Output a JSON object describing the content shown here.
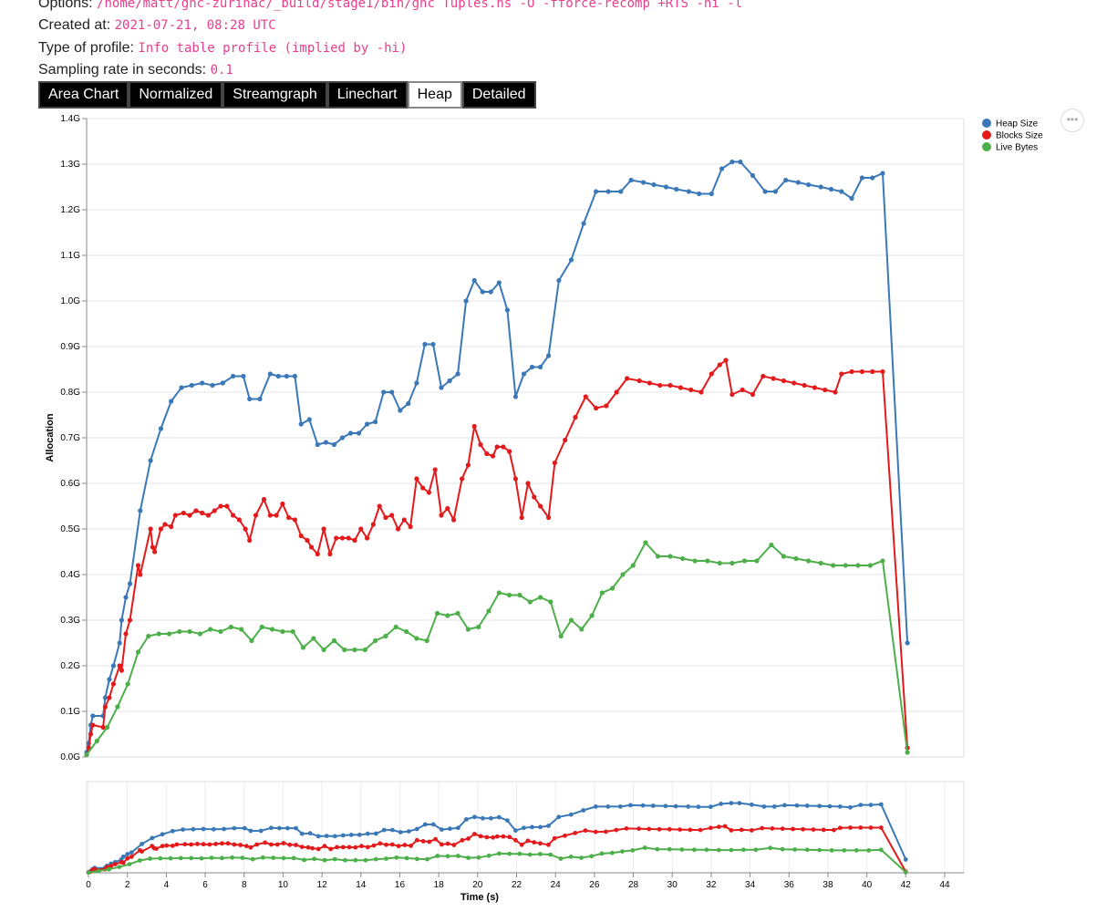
{
  "meta": {
    "options_label": "Options:",
    "options_value": "/home/matt/ghc-zurihac/_build/stage1/bin/ghc Tuples.hs -O -fforce-recomp +RTS -hi -l",
    "created_label": "Created at:",
    "created_value": "2021-07-21, 08:28 UTC",
    "type_label": "Type of profile:",
    "type_value": "Info table profile (implied by -hi)",
    "rate_label": "Sampling rate in seconds:",
    "rate_value": "0.1"
  },
  "tabs": [
    {
      "label": "Area Chart",
      "active": false
    },
    {
      "label": "Normalized",
      "active": false
    },
    {
      "label": "Streamgraph",
      "active": false
    },
    {
      "label": "Linechart",
      "active": false
    },
    {
      "label": "Heap",
      "active": true
    },
    {
      "label": "Detailed",
      "active": false
    }
  ],
  "menu_icon": "ellipsis-icon",
  "chart_data": {
    "type": "line",
    "xlabel": "Time (s)",
    "ylabel": "Allocation",
    "ylim": [
      0,
      1.4
    ],
    "y_ticks": [
      "0.0G",
      "0.1G",
      "0.2G",
      "0.3G",
      "0.4G",
      "0.5G",
      "0.6G",
      "0.7G",
      "0.8G",
      "0.9G",
      "1.0G",
      "1.1G",
      "1.2G",
      "1.3G",
      "1.4G"
    ],
    "xlim": [
      0,
      45
    ],
    "x_ticks": [
      0,
      2,
      4,
      6,
      8,
      10,
      12,
      14,
      16,
      18,
      20,
      22,
      24,
      26,
      28,
      30,
      32,
      34,
      36,
      38,
      40,
      42,
      44
    ],
    "grid": true,
    "legend_position": "top-right",
    "series": [
      {
        "name": "Heap Size",
        "color": "#3a78b8",
        "points": [
          [
            0,
            0.01
          ],
          [
            0.1,
            0.03
          ],
          [
            0.2,
            0.07
          ],
          [
            0.3,
            0.09
          ],
          [
            0.8,
            0.09
          ],
          [
            0.9,
            0.13
          ],
          [
            1.1,
            0.17
          ],
          [
            1.3,
            0.2
          ],
          [
            1.6,
            0.25
          ],
          [
            1.7,
            0.3
          ],
          [
            1.9,
            0.35
          ],
          [
            2.1,
            0.38
          ],
          [
            2.6,
            0.54
          ],
          [
            3.1,
            0.65
          ],
          [
            3.6,
            0.72
          ],
          [
            4.1,
            0.78
          ],
          [
            4.6,
            0.81
          ],
          [
            5.1,
            0.815
          ],
          [
            5.6,
            0.82
          ],
          [
            6.1,
            0.815
          ],
          [
            6.6,
            0.82
          ],
          [
            7.1,
            0.835
          ],
          [
            7.6,
            0.835
          ],
          [
            7.9,
            0.785
          ],
          [
            8.4,
            0.785
          ],
          [
            8.9,
            0.84
          ],
          [
            9.3,
            0.835
          ],
          [
            9.7,
            0.835
          ],
          [
            10.1,
            0.835
          ],
          [
            10.4,
            0.73
          ],
          [
            10.8,
            0.74
          ],
          [
            11.2,
            0.685
          ],
          [
            11.6,
            0.69
          ],
          [
            12,
            0.685
          ],
          [
            12.4,
            0.7
          ],
          [
            12.8,
            0.71
          ],
          [
            13.2,
            0.71
          ],
          [
            13.6,
            0.73
          ],
          [
            14,
            0.735
          ],
          [
            14.4,
            0.8
          ],
          [
            14.8,
            0.8
          ],
          [
            15.2,
            0.76
          ],
          [
            15.6,
            0.775
          ],
          [
            16,
            0.82
          ],
          [
            16.4,
            0.905
          ],
          [
            16.8,
            0.905
          ],
          [
            17.2,
            0.81
          ],
          [
            17.6,
            0.825
          ],
          [
            18,
            0.84
          ],
          [
            18.4,
            1.0
          ],
          [
            18.8,
            1.045
          ],
          [
            19.2,
            1.02
          ],
          [
            19.6,
            1.02
          ],
          [
            20,
            1.04
          ],
          [
            20.4,
            0.98
          ],
          [
            20.8,
            0.79
          ],
          [
            21.2,
            0.84
          ],
          [
            21.6,
            0.855
          ],
          [
            22,
            0.855
          ],
          [
            22.4,
            0.88
          ],
          [
            22.9,
            1.045
          ],
          [
            23.5,
            1.09
          ],
          [
            24.1,
            1.17
          ],
          [
            24.7,
            1.24
          ],
          [
            25.3,
            1.24
          ],
          [
            25.9,
            1.24
          ],
          [
            26.4,
            1.265
          ],
          [
            27,
            1.26
          ],
          [
            27.5,
            1.255
          ],
          [
            28.1,
            1.25
          ],
          [
            28.6,
            1.245
          ],
          [
            29.2,
            1.24
          ],
          [
            29.7,
            1.235
          ],
          [
            30.3,
            1.235
          ],
          [
            30.8,
            1.29
          ],
          [
            31.3,
            1.305
          ],
          [
            31.7,
            1.305
          ],
          [
            32.3,
            1.275
          ],
          [
            32.9,
            1.24
          ],
          [
            33.4,
            1.24
          ],
          [
            33.9,
            1.265
          ],
          [
            34.5,
            1.26
          ],
          [
            35,
            1.255
          ],
          [
            35.6,
            1.25
          ],
          [
            36.1,
            1.245
          ],
          [
            36.6,
            1.24
          ],
          [
            37.1,
            1.225
          ],
          [
            37.6,
            1.27
          ],
          [
            38.1,
            1.27
          ],
          [
            38.6,
            1.28
          ],
          [
            39.8,
            0.25
          ]
        ]
      },
      {
        "name": "Blocks Size",
        "color": "#e31a1c",
        "points": [
          [
            0,
            0.005
          ],
          [
            0.1,
            0.02
          ],
          [
            0.2,
            0.05
          ],
          [
            0.3,
            0.07
          ],
          [
            0.8,
            0.065
          ],
          [
            0.9,
            0.11
          ],
          [
            1.1,
            0.13
          ],
          [
            1.3,
            0.16
          ],
          [
            1.6,
            0.2
          ],
          [
            1.7,
            0.19
          ],
          [
            1.9,
            0.27
          ],
          [
            2.1,
            0.3
          ],
          [
            2.5,
            0.42
          ],
          [
            2.6,
            0.4
          ],
          [
            3.1,
            0.5
          ],
          [
            3.2,
            0.46
          ],
          [
            3.3,
            0.45
          ],
          [
            3.6,
            0.5
          ],
          [
            3.8,
            0.51
          ],
          [
            4.1,
            0.505
          ],
          [
            4.3,
            0.53
          ],
          [
            4.7,
            0.535
          ],
          [
            5,
            0.53
          ],
          [
            5.3,
            0.54
          ],
          [
            5.6,
            0.535
          ],
          [
            5.9,
            0.53
          ],
          [
            6.2,
            0.54
          ],
          [
            6.5,
            0.55
          ],
          [
            6.8,
            0.55
          ],
          [
            7.1,
            0.53
          ],
          [
            7.4,
            0.52
          ],
          [
            7.7,
            0.5
          ],
          [
            7.9,
            0.475
          ],
          [
            8.2,
            0.53
          ],
          [
            8.6,
            0.565
          ],
          [
            8.9,
            0.53
          ],
          [
            9.2,
            0.53
          ],
          [
            9.5,
            0.555
          ],
          [
            9.8,
            0.525
          ],
          [
            10.1,
            0.52
          ],
          [
            10.4,
            0.485
          ],
          [
            10.7,
            0.475
          ],
          [
            10.9,
            0.46
          ],
          [
            11.2,
            0.445
          ],
          [
            11.5,
            0.5
          ],
          [
            11.8,
            0.445
          ],
          [
            12.1,
            0.48
          ],
          [
            12.4,
            0.48
          ],
          [
            12.7,
            0.48
          ],
          [
            13,
            0.475
          ],
          [
            13.3,
            0.5
          ],
          [
            13.6,
            0.48
          ],
          [
            13.9,
            0.51
          ],
          [
            14.2,
            0.55
          ],
          [
            14.5,
            0.525
          ],
          [
            14.8,
            0.53
          ],
          [
            15.1,
            0.5
          ],
          [
            15.4,
            0.52
          ],
          [
            15.7,
            0.505
          ],
          [
            16,
            0.61
          ],
          [
            16.3,
            0.59
          ],
          [
            16.6,
            0.58
          ],
          [
            16.9,
            0.63
          ],
          [
            17.2,
            0.53
          ],
          [
            17.5,
            0.545
          ],
          [
            17.8,
            0.52
          ],
          [
            18.2,
            0.61
          ],
          [
            18.5,
            0.64
          ],
          [
            18.8,
            0.725
          ],
          [
            19.1,
            0.685
          ],
          [
            19.4,
            0.665
          ],
          [
            19.7,
            0.66
          ],
          [
            19.9,
            0.68
          ],
          [
            20.2,
            0.68
          ],
          [
            20.5,
            0.67
          ],
          [
            20.8,
            0.61
          ],
          [
            21.1,
            0.525
          ],
          [
            21.4,
            0.6
          ],
          [
            21.7,
            0.57
          ],
          [
            22,
            0.55
          ],
          [
            22.4,
            0.525
          ],
          [
            22.7,
            0.645
          ],
          [
            23.2,
            0.695
          ],
          [
            23.7,
            0.745
          ],
          [
            24.2,
            0.79
          ],
          [
            24.7,
            0.765
          ],
          [
            25.2,
            0.77
          ],
          [
            25.7,
            0.8
          ],
          [
            26.2,
            0.83
          ],
          [
            26.8,
            0.825
          ],
          [
            27.3,
            0.82
          ],
          [
            27.8,
            0.815
          ],
          [
            28.3,
            0.815
          ],
          [
            28.8,
            0.81
          ],
          [
            29.3,
            0.805
          ],
          [
            29.8,
            0.8
          ],
          [
            30.3,
            0.84
          ],
          [
            30.7,
            0.86
          ],
          [
            31,
            0.87
          ],
          [
            31.3,
            0.795
          ],
          [
            31.8,
            0.805
          ],
          [
            32.3,
            0.795
          ],
          [
            32.8,
            0.835
          ],
          [
            33.3,
            0.83
          ],
          [
            33.8,
            0.825
          ],
          [
            34.3,
            0.82
          ],
          [
            34.8,
            0.815
          ],
          [
            35.3,
            0.81
          ],
          [
            35.8,
            0.805
          ],
          [
            36.3,
            0.8
          ],
          [
            36.6,
            0.84
          ],
          [
            37.1,
            0.845
          ],
          [
            37.6,
            0.845
          ],
          [
            38.1,
            0.845
          ],
          [
            38.6,
            0.845
          ],
          [
            39.8,
            0.02
          ]
        ]
      },
      {
        "name": "Live Bytes",
        "color": "#4daf4a",
        "points": [
          [
            0,
            0.005
          ],
          [
            0.5,
            0.035
          ],
          [
            1,
            0.065
          ],
          [
            1.5,
            0.11
          ],
          [
            2,
            0.16
          ],
          [
            2.5,
            0.23
          ],
          [
            3,
            0.265
          ],
          [
            3.5,
            0.27
          ],
          [
            4,
            0.27
          ],
          [
            4.5,
            0.275
          ],
          [
            5,
            0.275
          ],
          [
            5.5,
            0.27
          ],
          [
            6,
            0.28
          ],
          [
            6.5,
            0.275
          ],
          [
            7,
            0.285
          ],
          [
            7.5,
            0.28
          ],
          [
            8,
            0.255
          ],
          [
            8.5,
            0.285
          ],
          [
            9,
            0.28
          ],
          [
            9.5,
            0.275
          ],
          [
            10,
            0.275
          ],
          [
            10.5,
            0.24
          ],
          [
            11,
            0.26
          ],
          [
            11.5,
            0.235
          ],
          [
            12,
            0.255
          ],
          [
            12.5,
            0.235
          ],
          [
            13,
            0.235
          ],
          [
            13.5,
            0.235
          ],
          [
            14,
            0.255
          ],
          [
            14.5,
            0.265
          ],
          [
            15,
            0.285
          ],
          [
            15.5,
            0.275
          ],
          [
            16,
            0.26
          ],
          [
            16.5,
            0.255
          ],
          [
            17,
            0.315
          ],
          [
            17.5,
            0.31
          ],
          [
            18,
            0.315
          ],
          [
            18.5,
            0.28
          ],
          [
            19,
            0.285
          ],
          [
            19.5,
            0.32
          ],
          [
            20,
            0.36
          ],
          [
            20.5,
            0.355
          ],
          [
            21,
            0.355
          ],
          [
            21.5,
            0.34
          ],
          [
            22,
            0.35
          ],
          [
            22.5,
            0.34
          ],
          [
            23,
            0.265
          ],
          [
            23.5,
            0.3
          ],
          [
            24,
            0.28
          ],
          [
            24.5,
            0.31
          ],
          [
            25,
            0.36
          ],
          [
            25.5,
            0.37
          ],
          [
            26,
            0.4
          ],
          [
            26.5,
            0.42
          ],
          [
            27.1,
            0.47
          ],
          [
            27.7,
            0.44
          ],
          [
            28.3,
            0.44
          ],
          [
            28.9,
            0.435
          ],
          [
            29.5,
            0.43
          ],
          [
            30.1,
            0.43
          ],
          [
            30.7,
            0.425
          ],
          [
            31.3,
            0.425
          ],
          [
            31.9,
            0.43
          ],
          [
            32.5,
            0.43
          ],
          [
            33.2,
            0.465
          ],
          [
            33.8,
            0.44
          ],
          [
            34.4,
            0.435
          ],
          [
            35,
            0.43
          ],
          [
            35.6,
            0.425
          ],
          [
            36.2,
            0.42
          ],
          [
            36.8,
            0.42
          ],
          [
            37.4,
            0.42
          ],
          [
            38,
            0.42
          ],
          [
            38.6,
            0.43
          ],
          [
            39.8,
            0.01
          ]
        ]
      }
    ]
  }
}
